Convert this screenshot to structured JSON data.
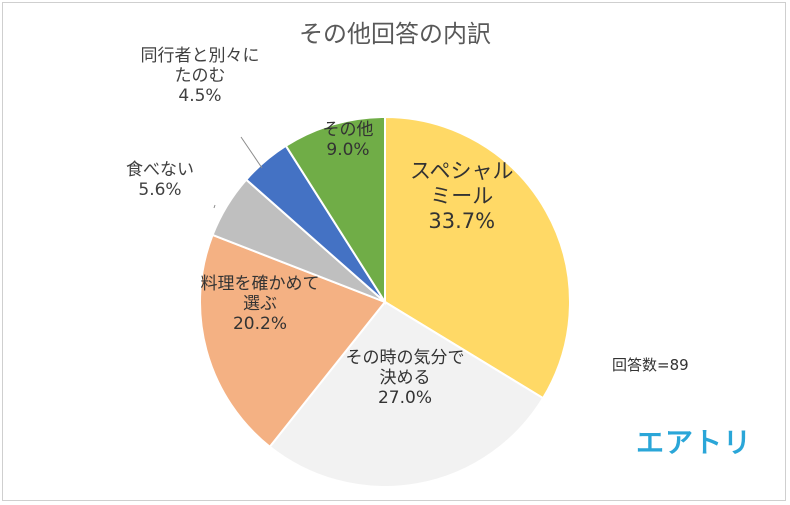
{
  "chart_data": {
    "type": "pie",
    "title": "その他回答の内訳",
    "slices": [
      {
        "label": [
          "スペシャル",
          "ミール"
        ],
        "value": 33.7,
        "value_label": "33.7%",
        "color": "#FFD966"
      },
      {
        "label": [
          "その時の気分で",
          "決める"
        ],
        "value": 27.0,
        "value_label": "27.0%",
        "color": "#F2F2F2"
      },
      {
        "label": [
          "料理を確かめて",
          "選ぶ"
        ],
        "value": 20.2,
        "value_label": "20.2%",
        "color": "#F4B183"
      },
      {
        "label": [
          "食べない"
        ],
        "value": 5.6,
        "value_label": "5.6%",
        "color": "#BFBFBF"
      },
      {
        "label": [
          "同行者と別々に",
          "たのむ"
        ],
        "value": 4.5,
        "value_label": "4.5%",
        "color": "#4472C4"
      },
      {
        "label": [
          "その他"
        ],
        "value": 9.0,
        "value_label": "9.0%",
        "color": "#70AD47"
      }
    ],
    "start_angle_deg": 0,
    "direction": "clockwise"
  },
  "annotation": "回答数=89",
  "logo_text": "エアトリ"
}
